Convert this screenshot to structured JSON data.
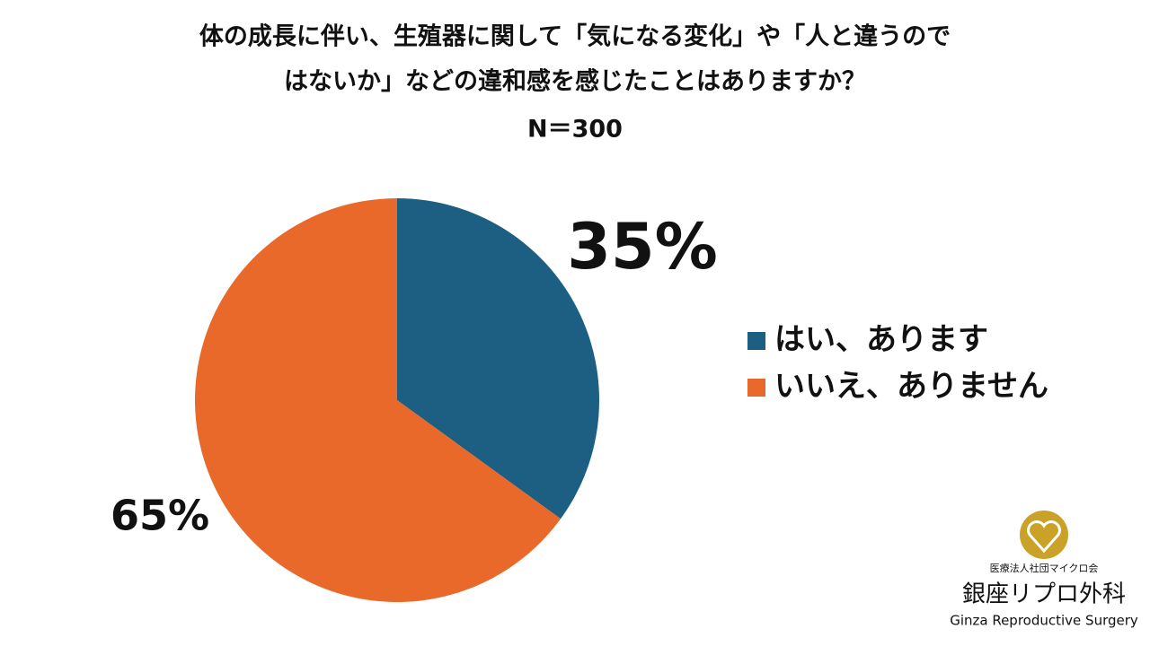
{
  "chart_data": {
    "type": "pie",
    "title": [
      "体の成長に伴い、生殖器に関して「気になる変化」や「人と違うので",
      "はないか」などの違和感を感じたことはありますか？"
    ],
    "subtitle": "N＝300",
    "categories": [
      "はい、あります",
      "いいえ、ありません"
    ],
    "values": [
      35,
      65
    ],
    "value_labels": [
      "35%",
      "65%"
    ],
    "colors": [
      "#1d5f82",
      "#e8692a"
    ],
    "legend": "right"
  },
  "logo": {
    "org": "医療法人社団マイクロ会",
    "name": "銀座リプロ外科",
    "name_en": "Ginza Reproductive Surgery"
  }
}
